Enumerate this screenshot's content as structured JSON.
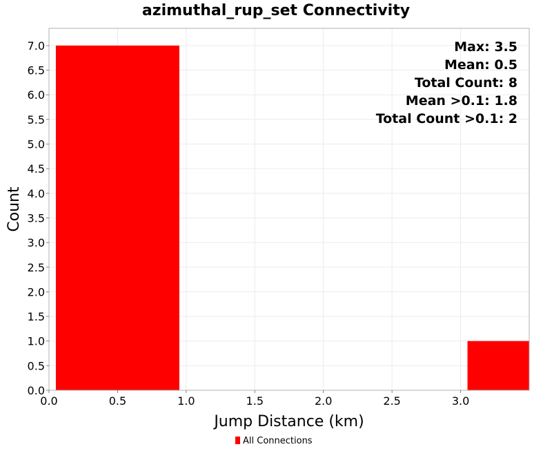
{
  "chart_data": {
    "type": "bar",
    "title": "azimuthal_rup_set Connectivity",
    "xlabel": "Jump Distance (km)",
    "ylabel": "Count",
    "xlim": [
      0,
      3.5
    ],
    "ylim": [
      0,
      7.35
    ],
    "xticks": [
      0.0,
      0.5,
      1.0,
      1.5,
      2.0,
      2.5,
      3.0
    ],
    "xtick_labels": [
      "0.0",
      "0.5",
      "1.0",
      "1.5",
      "2.0",
      "2.5",
      "3.0"
    ],
    "yticks": [
      0.0,
      0.5,
      1.0,
      1.5,
      2.0,
      2.5,
      3.0,
      3.5,
      4.0,
      4.5,
      5.0,
      5.5,
      6.0,
      6.5,
      7.0
    ],
    "ytick_labels": [
      "0.0",
      "0.5",
      "1.0",
      "1.5",
      "2.0",
      "2.5",
      "3.0",
      "3.5",
      "4.0",
      "4.5",
      "5.0",
      "5.5",
      "6.0",
      "6.5",
      "7.0"
    ],
    "grid": true,
    "series": [
      {
        "name": "All Connections",
        "color": "#ff0000",
        "bins": [
          {
            "x0": 0.05,
            "x1": 0.95,
            "value": 7
          },
          {
            "x0": 3.05,
            "x1": 3.5,
            "value": 1
          }
        ]
      }
    ],
    "annotations": [
      "Max: 3.5",
      "Mean: 0.5",
      "Total Count: 8",
      "Mean >0.1: 1.8",
      "Total Count >0.1: 2"
    ],
    "annotation_placement": "top-right",
    "legend_placement": "bottom-center"
  }
}
